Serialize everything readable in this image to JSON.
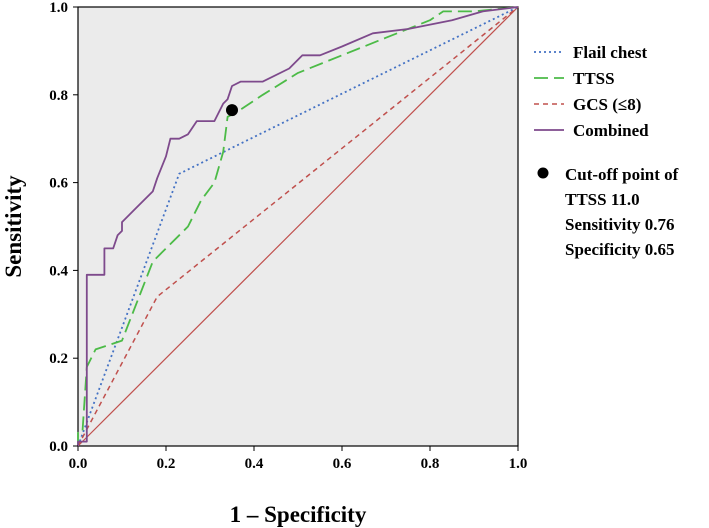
{
  "chart_data": {
    "type": "line",
    "title": "",
    "xlabel": "1 – Specificity",
    "ylabel": "Sensitivity",
    "xlim": [
      0.0,
      1.0
    ],
    "ylim": [
      0.0,
      1.0
    ],
    "xticks": [
      "0.0",
      "0.2",
      "0.4",
      "0.6",
      "0.8",
      "1.0"
    ],
    "yticks": [
      "0.0",
      "0.2",
      "0.4",
      "0.6",
      "0.8",
      "1.0"
    ],
    "legend_position": "right",
    "series": [
      {
        "name": "Flail chest",
        "color": "#4472c4",
        "style": "dotted",
        "points": [
          [
            0.0,
            0.0
          ],
          [
            0.23,
            0.62
          ],
          [
            1.0,
            1.0
          ]
        ]
      },
      {
        "name": "TTSS",
        "color": "#4cbb47",
        "style": "dashed",
        "points": [
          [
            0.0,
            0.0
          ],
          [
            0.0,
            0.03
          ],
          [
            0.01,
            0.03
          ],
          [
            0.02,
            0.18
          ],
          [
            0.04,
            0.22
          ],
          [
            0.1,
            0.24
          ],
          [
            0.17,
            0.42
          ],
          [
            0.19,
            0.44
          ],
          [
            0.23,
            0.48
          ],
          [
            0.25,
            0.5
          ],
          [
            0.28,
            0.56
          ],
          [
            0.31,
            0.6
          ],
          [
            0.33,
            0.67
          ],
          [
            0.34,
            0.75
          ],
          [
            0.36,
            0.76
          ],
          [
            0.42,
            0.8
          ],
          [
            0.5,
            0.85
          ],
          [
            0.6,
            0.89
          ],
          [
            0.7,
            0.93
          ],
          [
            0.8,
            0.97
          ],
          [
            0.83,
            0.99
          ],
          [
            0.9,
            0.99
          ],
          [
            1.0,
            1.0
          ]
        ]
      },
      {
        "name": "GCS (≤8)",
        "color": "#c0504d",
        "style": "dashed-small",
        "points": [
          [
            0.0,
            0.0
          ],
          [
            0.18,
            0.34
          ],
          [
            1.0,
            1.0
          ]
        ]
      },
      {
        "name": "Combined",
        "color": "#7e4a8c",
        "style": "solid",
        "points": [
          [
            0.0,
            0.0
          ],
          [
            0.0,
            0.01
          ],
          [
            0.02,
            0.01
          ],
          [
            0.02,
            0.39
          ],
          [
            0.06,
            0.39
          ],
          [
            0.06,
            0.45
          ],
          [
            0.08,
            0.45
          ],
          [
            0.09,
            0.48
          ],
          [
            0.1,
            0.49
          ],
          [
            0.1,
            0.51
          ],
          [
            0.13,
            0.54
          ],
          [
            0.17,
            0.58
          ],
          [
            0.18,
            0.61
          ],
          [
            0.2,
            0.66
          ],
          [
            0.21,
            0.7
          ],
          [
            0.23,
            0.7
          ],
          [
            0.25,
            0.71
          ],
          [
            0.27,
            0.74
          ],
          [
            0.29,
            0.74
          ],
          [
            0.31,
            0.74
          ],
          [
            0.33,
            0.78
          ],
          [
            0.34,
            0.79
          ],
          [
            0.35,
            0.82
          ],
          [
            0.37,
            0.83
          ],
          [
            0.42,
            0.83
          ],
          [
            0.48,
            0.86
          ],
          [
            0.51,
            0.89
          ],
          [
            0.55,
            0.89
          ],
          [
            0.6,
            0.91
          ],
          [
            0.67,
            0.94
          ],
          [
            0.75,
            0.95
          ],
          [
            0.85,
            0.97
          ],
          [
            0.92,
            0.99
          ],
          [
            1.0,
            1.0
          ]
        ]
      }
    ],
    "reference_line": {
      "color": "#c0504d",
      "points": [
        [
          0.0,
          0.0
        ],
        [
          1.0,
          1.0
        ]
      ]
    },
    "cutoff_point": {
      "x": 0.35,
      "y": 0.765,
      "color": "#000000"
    },
    "annotation": {
      "lines": [
        "Cut-off point of",
        "TTSS 11.0",
        "Sensitivity 0.76",
        "Specificity 0.65"
      ]
    }
  }
}
